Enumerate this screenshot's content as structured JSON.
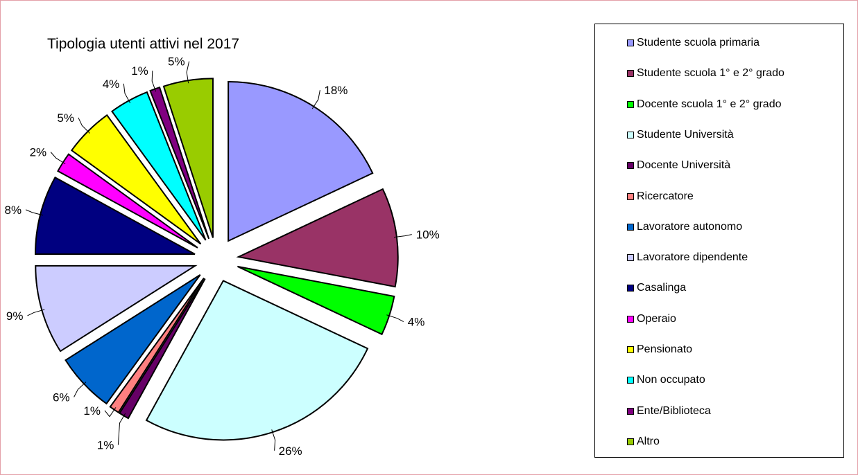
{
  "chart_data": {
    "type": "pie",
    "title": "Tipologia utenti attivi nel 2017",
    "legend_position": "right",
    "exploded": true,
    "start_angle": "12 o'clock, clockwise",
    "slices": [
      {
        "name": "Studente scuola primaria",
        "value": 18,
        "label": "18%",
        "color": "#9999ff"
      },
      {
        "name": "Studente scuola 1° e 2° grado",
        "value": 10,
        "label": "10%",
        "color": "#993366"
      },
      {
        "name": "Docente scuola 1° e 2° grado",
        "value": 4,
        "label": "4%",
        "color": "#00ff00"
      },
      {
        "name": "Studente Università",
        "value": 26,
        "label": "26%",
        "color": "#ccffff"
      },
      {
        "name": "Docente Università",
        "value": 1,
        "label": "1%",
        "color": "#660066"
      },
      {
        "name": "Ricercatore",
        "value": 1,
        "label": "1%",
        "color": "#ff8080"
      },
      {
        "name": "Lavoratore autonomo",
        "value": 6,
        "label": "6%",
        "color": "#0066cc"
      },
      {
        "name": "Lavoratore dipendente",
        "value": 9,
        "label": "9%",
        "color": "#ccccff"
      },
      {
        "name": "Casalinga",
        "value": 8,
        "label": "8%",
        "color": "#000080"
      },
      {
        "name": "Operaio",
        "value": 2,
        "label": "2%",
        "color": "#ff00ff"
      },
      {
        "name": "Pensionato",
        "value": 5,
        "label": "5%",
        "color": "#ffff00"
      },
      {
        "name": "Non occupato",
        "value": 4,
        "label": "4%",
        "color": "#00ffff"
      },
      {
        "name": "Ente/Biblioteca",
        "value": 1,
        "label": "1%",
        "color": "#800080"
      },
      {
        "name": "Altro",
        "value": 5,
        "label": "5%",
        "color": "#99cc00"
      }
    ]
  }
}
